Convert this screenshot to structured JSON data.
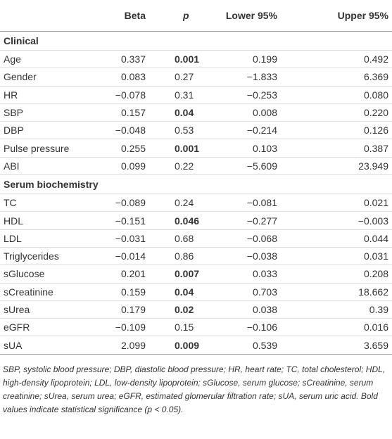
{
  "table": {
    "header": [
      "Beta",
      "p",
      "Lower 95%",
      "Upper 95%"
    ],
    "sections": [
      {
        "title": "Clinical",
        "rows": [
          {
            "cells": [
              "Age",
              "0.337",
              "0.001",
              "0.199",
              "0.492"
            ],
            "p_bold": true
          },
          {
            "cells": [
              "Gender",
              "0.083",
              "0.27",
              "−1.833",
              "6.369"
            ],
            "p_bold": false
          },
          {
            "cells": [
              "HR",
              "−0.078",
              "0.31",
              "−0.253",
              "0.080"
            ],
            "p_bold": false
          },
          {
            "cells": [
              "SBP",
              "0.157",
              "0.04",
              "0.008",
              "0.220"
            ],
            "p_bold": true
          },
          {
            "cells": [
              "DBP",
              "−0.048",
              "0.53",
              "−0.214",
              "0.126"
            ],
            "p_bold": false
          },
          {
            "cells": [
              "Pulse pressure",
              "0.255",
              "0.001",
              "0.103",
              "0.387"
            ],
            "p_bold": true
          },
          {
            "cells": [
              "ABI",
              "0.099",
              "0.22",
              "−5.609",
              "23.949"
            ],
            "p_bold": false
          }
        ]
      },
      {
        "title": "Serum biochemistry",
        "rows": [
          {
            "cells": [
              "TC",
              "−0.089",
              "0.24",
              "−0.081",
              "0.021"
            ],
            "p_bold": false
          },
          {
            "cells": [
              "HDL",
              "−0.151",
              "0.046",
              "−0.277",
              "−0.003"
            ],
            "p_bold": true
          },
          {
            "cells": [
              "LDL",
              "−0.031",
              "0.68",
              "−0.068",
              "0.044"
            ],
            "p_bold": false
          },
          {
            "cells": [
              "Triglycerides",
              "−0.014",
              "0.86",
              "−0.038",
              "0.031"
            ],
            "p_bold": false
          },
          {
            "cells": [
              "sGlucose",
              "0.201",
              "0.007",
              "0.033",
              "0.208"
            ],
            "p_bold": true
          },
          {
            "cells": [
              "sCreatinine",
              "0.159",
              "0.04",
              "0.703",
              "18.662"
            ],
            "p_bold": true
          },
          {
            "cells": [
              "sUrea",
              "0.179",
              "0.02",
              "0.038",
              "0.39"
            ],
            "p_bold": true
          },
          {
            "cells": [
              "eGFR",
              "−0.109",
              "0.15",
              "−0.106",
              "0.016"
            ],
            "p_bold": false
          },
          {
            "cells": [
              "sUA",
              "2.099",
              "0.009",
              "0.539",
              "3.659"
            ],
            "p_bold": true
          }
        ]
      }
    ],
    "footnote": "SBP, systolic blood pressure; DBP, diastolic blood pressure; HR, heart rate; TC, total cholesterol; HDL, high-density lipoprotein; LDL, low-density lipoprotein; sGlucose, serum glucose; sCreatinine, serum creatinine; sUrea, serum urea; eGFR, estimated glomerular filtration rate; sUA, serum uric acid. Bold values indicate statistical significance (p < 0.05)."
  }
}
